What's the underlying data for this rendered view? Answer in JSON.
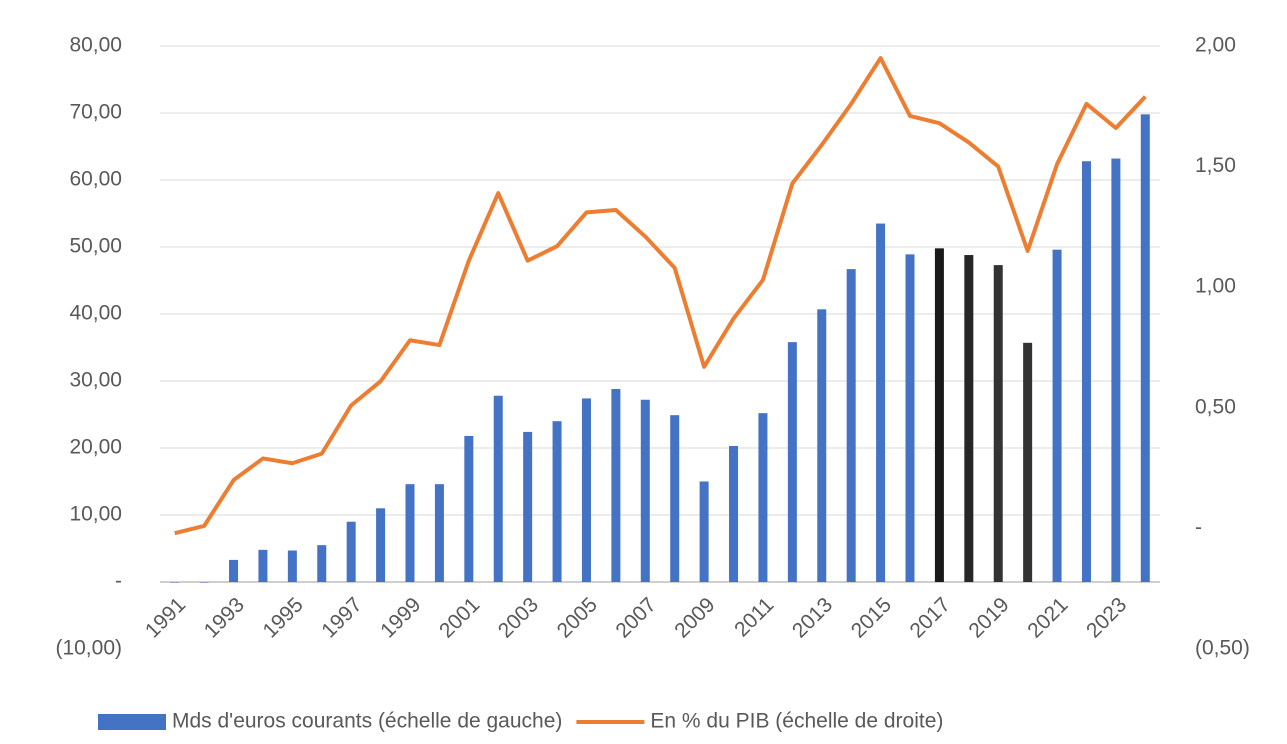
{
  "chart_data": {
    "type": "bar_line",
    "categories": [
      "1991",
      null,
      "1993",
      null,
      "1995",
      null,
      "1997",
      null,
      "1999",
      null,
      "2001",
      null,
      "2003",
      null,
      "2005",
      null,
      "2007",
      null,
      "2009",
      null,
      "2011",
      null,
      "2013",
      null,
      "2015",
      null,
      "2017",
      null,
      "2019",
      null,
      "2021",
      null,
      "2023",
      null
    ],
    "series": [
      {
        "name": "Mds d'euros courants (échelle de gauche)",
        "type": "bar",
        "axis": "y",
        "color": "#4472c4",
        "colors": [
          "#4472c4",
          "#4472c4",
          "#4472c4",
          "#4472c4",
          "#4472c4",
          "#4472c4",
          "#4472c4",
          "#4472c4",
          "#4472c4",
          "#4472c4",
          "#4472c4",
          "#4472c4",
          "#4472c4",
          "#4472c4",
          "#4472c4",
          "#4472c4",
          "#4472c4",
          "#4472c4",
          "#4472c4",
          "#4472c4",
          "#4472c4",
          "#4472c4",
          "#4472c4",
          "#4472c4",
          "#4472c4",
          "#4472c4",
          "#1a1a1a",
          "#262626",
          "#333333",
          "#333333",
          "#4472c4",
          "#4472c4",
          "#4472c4",
          "#4472c4"
        ],
        "values": [
          0,
          0,
          3.3,
          4.8,
          4.7,
          5.5,
          9,
          11,
          14.6,
          14.6,
          21.8,
          27.8,
          22.4,
          24,
          27.4,
          28.8,
          27.2,
          24.9,
          15,
          20.3,
          25.2,
          35.8,
          40.7,
          46.7,
          53.5,
          48.9,
          49.8,
          48.8,
          47.3,
          35.7,
          49.6,
          62.8,
          63.2,
          69.8
        ]
      },
      {
        "name": "En % du PIB (échelle de droite)",
        "type": "line",
        "axis": "y2",
        "color": "#ed7d31",
        "values": [
          -0.02,
          0.01,
          0.2,
          0.29,
          0.27,
          0.31,
          0.51,
          0.61,
          0.78,
          0.76,
          1.11,
          1.39,
          1.11,
          1.17,
          1.31,
          1.32,
          1.21,
          1.08,
          0.67,
          0.87,
          1.03,
          1.43,
          1.59,
          1.76,
          1.95,
          1.71,
          1.68,
          1.6,
          1.5,
          1.15,
          1.51,
          1.76,
          1.66,
          1.79
        ]
      }
    ],
    "ylim": [
      -10,
      80
    ],
    "yticks": [
      {
        "value": -10,
        "label": "(10,00)"
      },
      {
        "value": 0,
        "label": "-"
      },
      {
        "value": 10,
        "label": "10,00"
      },
      {
        "value": 20,
        "label": "20,00"
      },
      {
        "value": 30,
        "label": "30,00"
      },
      {
        "value": 40,
        "label": "40,00"
      },
      {
        "value": 50,
        "label": "50,00"
      },
      {
        "value": 60,
        "label": "60,00"
      },
      {
        "value": 70,
        "label": "70,00"
      },
      {
        "value": 80,
        "label": "80,00"
      }
    ],
    "y2lim": [
      -0.5,
      2
    ],
    "y2ticks": [
      {
        "value": -0.5,
        "label": "(0,50)"
      },
      {
        "value": 0,
        "label": "-"
      },
      {
        "value": 0.5,
        "label": "0,50"
      },
      {
        "value": 1,
        "label": "1,00"
      },
      {
        "value": 1.5,
        "label": "1,50"
      },
      {
        "value": 2,
        "label": "2,00"
      }
    ],
    "grid": true,
    "legend": "bottom"
  }
}
